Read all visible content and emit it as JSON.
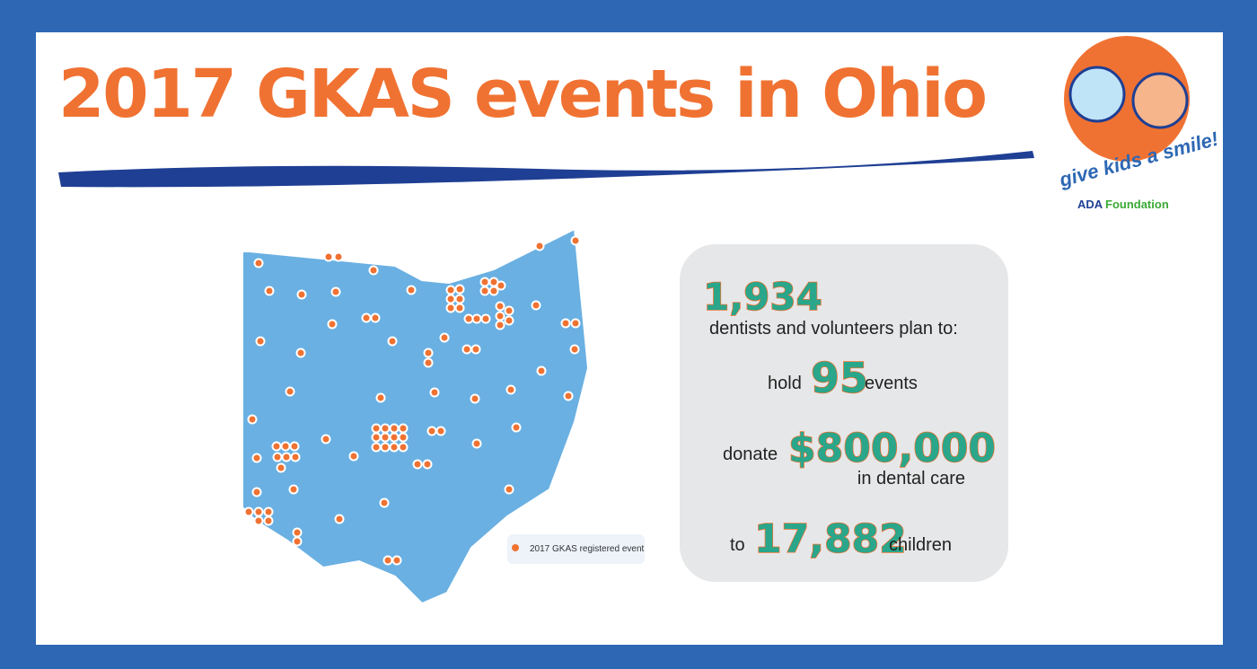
{
  "header": {
    "title": "2017 GKAS events in Ohio"
  },
  "logo": {
    "tagline": "give kids a smile!",
    "org_prefix": "ADA",
    "org_name": "Foundation"
  },
  "map": {
    "legend": "2017 GKAS registered event"
  },
  "stats": {
    "volunteers": "1,934",
    "volunteers_text": "dentists and volunteers plan to:",
    "events_pre": "hold",
    "events": "95",
    "events_post": "events",
    "donate_pre": "donate",
    "donate": "$800,000",
    "donate_post": "in dental care",
    "children_pre": "to",
    "children": "17,882",
    "children_post": "children"
  }
}
